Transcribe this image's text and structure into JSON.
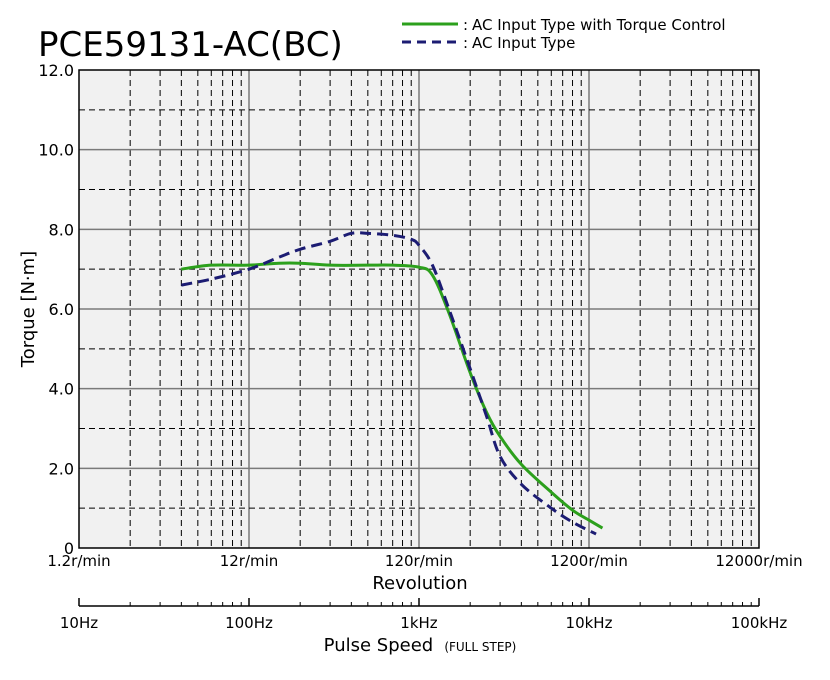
{
  "chart_data": {
    "type": "line",
    "title": "PCE59131-AC(BC)",
    "ylabel": "Torque [N·m]",
    "xlabel": "Revolution",
    "xlabel2_main": "Pulse Speed",
    "xlabel2_sub": "(FULL STEP)",
    "x_scale": "log",
    "x_unit": "Hz",
    "xlim": [
      10,
      100000
    ],
    "ylim": [
      0,
      12
    ],
    "grid": true,
    "legend_position": "top-right",
    "y_ticks": [
      "0",
      "2.0",
      "4.0",
      "6.0",
      "8.0",
      "10.0",
      "12.0"
    ],
    "x_ticks_revolution": [
      "1.2r/min",
      "12r/min",
      "120r/min",
      "1200r/min",
      "12000r/min"
    ],
    "x_ticks_pulse": [
      "10Hz",
      "100Hz",
      "1kHz",
      "10kHz",
      "100kHz"
    ],
    "series": [
      {
        "name": "AC Input Type with Torque Control",
        "color": "#2ca01c",
        "style": "solid",
        "x": [
          40,
          60,
          100,
          150,
          200,
          300,
          500,
          700,
          1000,
          1200,
          1500,
          2000,
          2500,
          3000,
          4000,
          6000,
          8000,
          10000,
          12000
        ],
        "y": [
          7.0,
          7.1,
          7.1,
          7.15,
          7.15,
          7.1,
          7.1,
          7.1,
          7.05,
          6.85,
          5.9,
          4.4,
          3.4,
          2.8,
          2.1,
          1.4,
          0.95,
          0.7,
          0.5
        ]
      },
      {
        "name": "AC Input Type",
        "color": "#1c1c73",
        "style": "dashed",
        "x": [
          40,
          60,
          100,
          150,
          200,
          300,
          400,
          500,
          700,
          900,
          1000,
          1200,
          1500,
          2000,
          2500,
          3000,
          4000,
          6000,
          8000,
          11000
        ],
        "y": [
          6.6,
          6.75,
          7.0,
          7.3,
          7.5,
          7.7,
          7.9,
          7.9,
          7.85,
          7.75,
          7.6,
          7.1,
          6.0,
          4.5,
          3.3,
          2.3,
          1.6,
          1.0,
          0.65,
          0.35
        ]
      }
    ]
  }
}
